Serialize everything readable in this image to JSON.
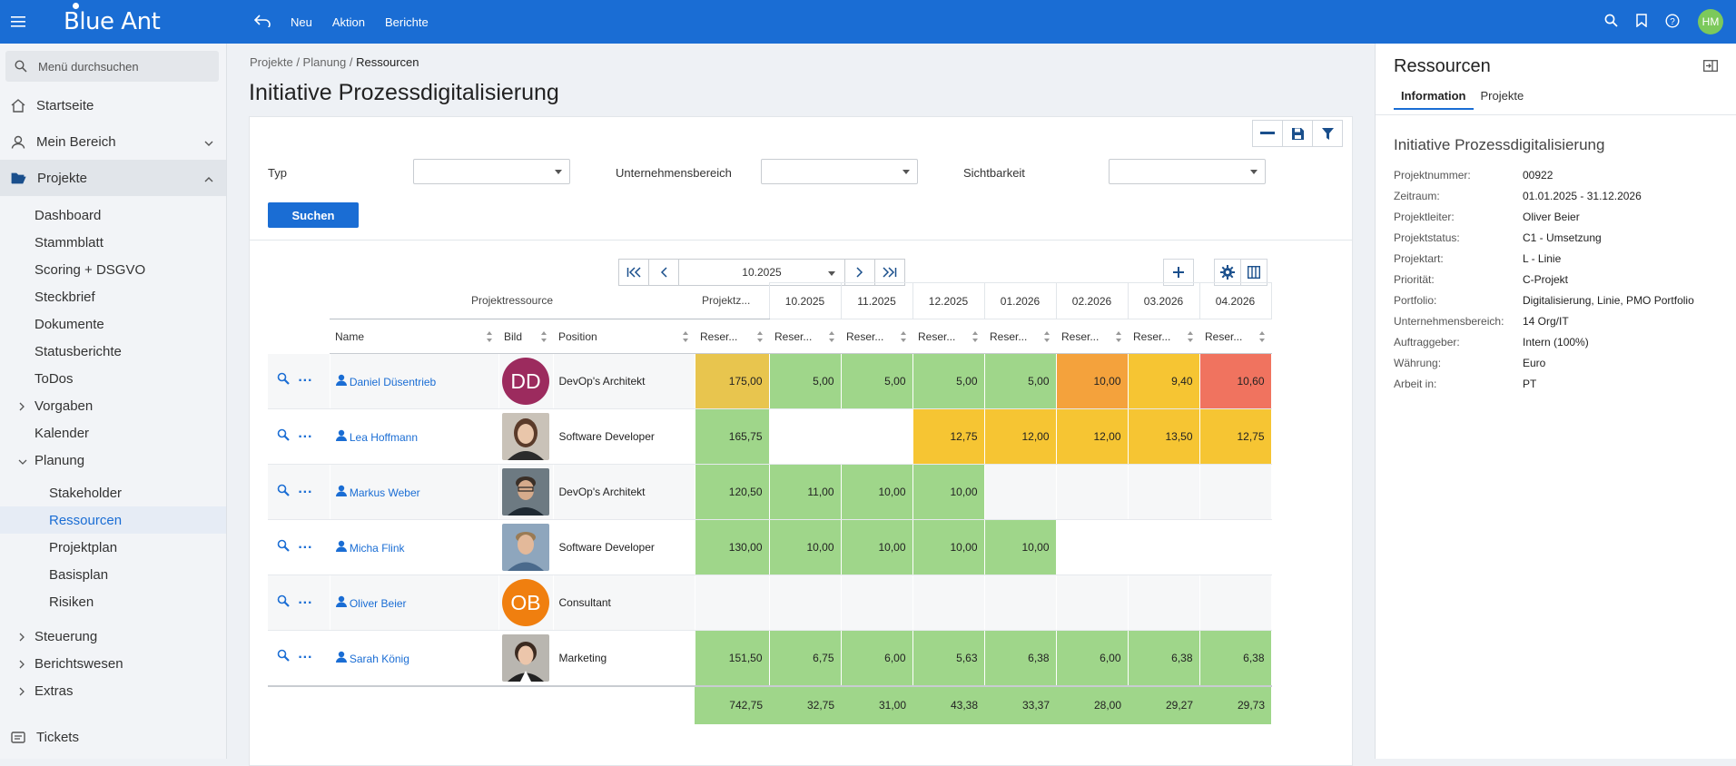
{
  "app": {
    "logo": "Blue Ant",
    "user_initials": "HM"
  },
  "topnav": {
    "new": "Neu",
    "action": "Aktion",
    "reports": "Berichte"
  },
  "sidebar": {
    "search_placeholder": "Menü durchsuchen",
    "home": "Startseite",
    "my_area": "Mein Bereich",
    "projects": "Projekte",
    "project_items": [
      "Dashboard",
      "Stammblatt",
      "Scoring + DSGVO",
      "Steckbrief",
      "Dokumente",
      "Statusberichte",
      "ToDos"
    ],
    "vorgaben": "Vorgaben",
    "kalender": "Kalender",
    "planung": "Planung",
    "planung_items": [
      "Stakeholder",
      "Ressourcen",
      "Projektplan",
      "Basisplan",
      "Risiken"
    ],
    "steuerung": "Steuerung",
    "berichtswesen": "Berichtswesen",
    "extras": "Extras",
    "tickets": "Tickets"
  },
  "breadcrumb": {
    "b1": "Projekte",
    "b2": "Planung",
    "b3": "Ressourcen"
  },
  "page_title": "Initiative Prozessdigitalisierung",
  "filters": {
    "typ": "Typ",
    "unternehmensbereich": "Unternehmensbereich",
    "sichtbarkeit": "Sichtbarkeit",
    "search_button": "Suchen"
  },
  "pager": {
    "date": "10.2025"
  },
  "grid": {
    "group_header": "Projektressource",
    "col_projektz": "Projektz...",
    "months": [
      "10.2025",
      "11.2025",
      "12.2025",
      "01.2026",
      "02.2026",
      "03.2026",
      "04.2026"
    ],
    "col_name": "Name",
    "col_bild": "Bild",
    "col_position": "Position",
    "col_reser": "Reser...",
    "rows": [
      {
        "name": "Daniel Düsentrieb",
        "initials": "DD",
        "position": "DevOp's Architekt",
        "total": "175,00",
        "values": [
          "5,00",
          "5,00",
          "5,00",
          "5,00",
          "10,00",
          "9,40",
          "10,60"
        ]
      },
      {
        "name": "Lea Hoffmann",
        "initials": "",
        "position": "Software Developer",
        "total": "165,75",
        "values": [
          "",
          "",
          "12,75",
          "12,00",
          "12,00",
          "13,50",
          "12,75"
        ]
      },
      {
        "name": "Markus Weber",
        "initials": "",
        "position": "DevOp's Architekt",
        "total": "120,50",
        "values": [
          "11,00",
          "10,00",
          "10,00",
          "",
          "",
          "",
          ""
        ]
      },
      {
        "name": "Micha Flink",
        "initials": "",
        "position": "Software Developer",
        "total": "130,00",
        "values": [
          "10,00",
          "10,00",
          "10,00",
          "10,00",
          "",
          "",
          ""
        ]
      },
      {
        "name": "Oliver Beier",
        "initials": "OB",
        "position": "Consultant",
        "total": "",
        "values": [
          "",
          "",
          "",
          "",
          "",
          "",
          ""
        ]
      },
      {
        "name": "Sarah König",
        "initials": "",
        "position": "Marketing",
        "total": "151,50",
        "values": [
          "6,75",
          "6,00",
          "5,63",
          "6,38",
          "6,00",
          "6,38",
          "6,38"
        ]
      }
    ],
    "sums": {
      "total": "742,75",
      "values": [
        "32,75",
        "31,00",
        "43,38",
        "33,37",
        "28,00",
        "29,27",
        "29,73"
      ]
    }
  },
  "right_panel": {
    "title": "Ressourcen",
    "tab_info": "Information",
    "tab_projects": "Projekte",
    "project_title": "Initiative Prozessdigitalisierung",
    "info": [
      {
        "k": "Projektnummer:",
        "v": "00922"
      },
      {
        "k": "Zeitraum:",
        "v": "01.01.2025 - 31.12.2026"
      },
      {
        "k": "Projektleiter:",
        "v": "Oliver Beier"
      },
      {
        "k": "Projektstatus:",
        "v": "C1 - Umsetzung"
      },
      {
        "k": "Projektart:",
        "v": "L - Linie"
      },
      {
        "k": "Priorität:",
        "v": "C-Projekt"
      },
      {
        "k": "Portfolio:",
        "v": "Digitalisierung, Linie, PMO Portfolio"
      },
      {
        "k": "Unternehmensbereich:",
        "v": "14 Org/IT"
      },
      {
        "k": "Auftraggeber:",
        "v": "Intern (100%)"
      },
      {
        "k": "Währung:",
        "v": "Euro"
      },
      {
        "k": "Arbeit in:",
        "v": "PT"
      }
    ]
  },
  "colors": {
    "brand": "#1a6dd4",
    "green": "#9fd68a",
    "yellow": "#f6c533",
    "orange": "#f4a23c",
    "red": "#f0735f"
  }
}
